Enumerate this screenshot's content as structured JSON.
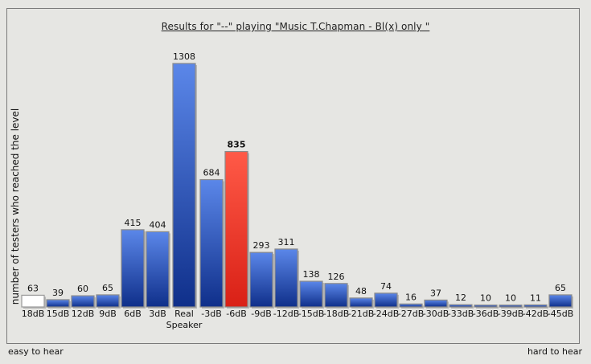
{
  "chart": {
    "title": "Results for \"--\" playing \"Music T.Chapman - Bl(x) only \"",
    "ylabel": "number of testers who reached the level",
    "footer_left": "easy to hear",
    "footer_right": "hard to hear"
  },
  "colors": {
    "background": "#e6e6e3",
    "blue_top": "#5b87e9",
    "blue_bottom": "#0f2f8a",
    "red_top": "#ff5a47",
    "red_bottom": "#d92016",
    "white_bar": "#ffffff"
  },
  "chart_data": {
    "type": "bar",
    "title": "Results for \"--\" playing \"Music T.Chapman - Bl(x) only \"",
    "xlabel": "",
    "ylabel": "number of testers who reached the level",
    "categories": [
      "18dB",
      "15dB",
      "12dB",
      "9dB",
      "6dB",
      "3dB",
      "Real\nSpeaker",
      "-3dB",
      "-6dB",
      "-9dB",
      "-12dB",
      "-15dB",
      "-18dB",
      "-21dB",
      "-24dB",
      "-27dB",
      "-30dB",
      "-33dB",
      "-36dB",
      "-39dB",
      "-42dB",
      "-45dB"
    ],
    "values": [
      63,
      39,
      60,
      65,
      415,
      404,
      1308,
      684,
      835,
      293,
      311,
      138,
      126,
      48,
      74,
      16,
      37,
      12,
      10,
      10,
      11,
      65
    ],
    "data_labels": [
      "63",
      "39",
      "60",
      "65",
      "415",
      "404",
      "1308",
      "684",
      "835",
      "293",
      "311",
      "138",
      "126",
      "48",
      "74",
      "16",
      "37",
      "12",
      "10",
      "10",
      "11",
      "65"
    ],
    "highlight_index": 8,
    "white_index": 0,
    "ylim": [
      0,
      1308
    ],
    "grid": false,
    "legend": "none"
  }
}
